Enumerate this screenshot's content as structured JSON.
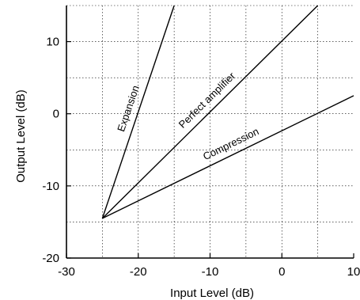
{
  "chart_data": {
    "type": "line",
    "title": "",
    "xlabel": "Input Level (dB)",
    "ylabel": "Output Level (dB)",
    "xlim": [
      -30,
      10
    ],
    "ylim": [
      -20,
      15
    ],
    "x_ticks": [
      -30,
      -20,
      -10,
      0,
      10
    ],
    "y_ticks": [
      -20,
      -10,
      0,
      10
    ],
    "x_tick_labels": [
      "-30",
      "-20",
      "-10",
      "0",
      "10"
    ],
    "y_tick_labels": [
      "-20",
      "-10",
      "0",
      "10"
    ],
    "grid": true,
    "grid_step": 5,
    "series": [
      {
        "name": "Expansion",
        "x": [
          -25,
          -15
        ],
        "y": [
          -14.5,
          15
        ]
      },
      {
        "name": "Perfect amplifier",
        "x": [
          -25,
          5
        ],
        "y": [
          -14.5,
          15
        ]
      },
      {
        "name": "Compression",
        "x": [
          -25,
          10
        ],
        "y": [
          -14.5,
          2.5
        ]
      }
    ]
  }
}
